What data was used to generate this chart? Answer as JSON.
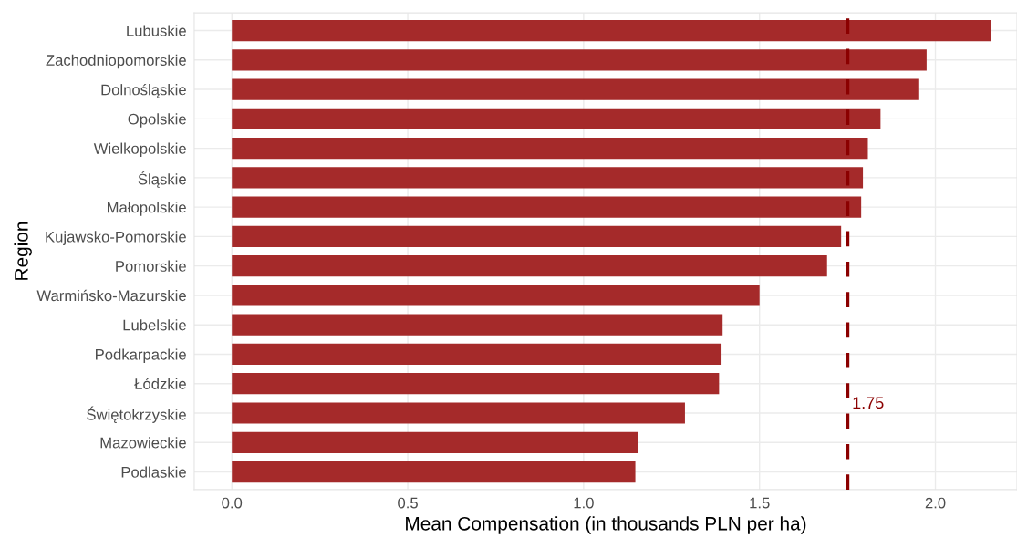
{
  "chart_data": {
    "type": "bar",
    "orientation": "horizontal",
    "xlabel": "Mean Compensation (in thousands PLN per ha)",
    "ylabel": "Region",
    "categories": [
      "Lubuskie",
      "Zachodniopomorskie",
      "Dolnośląskie",
      "Opolskie",
      "Wielkopolskie",
      "Śląskie",
      "Małopolskie",
      "Kujawsko-Pomorskie",
      "Pomorskie",
      "Warmińsko-Mazurskie",
      "Lubelskie",
      "Podkarpackie",
      "Łódzkie",
      "Świętokrzyskie",
      "Mazowieckie",
      "Podlaskie"
    ],
    "values": [
      2.157,
      1.975,
      1.954,
      1.844,
      1.808,
      1.794,
      1.789,
      1.732,
      1.692,
      1.5,
      1.395,
      1.392,
      1.385,
      1.288,
      1.154,
      1.147
    ],
    "color": "#a52a2a",
    "xlim": [
      -0.107,
      2.232
    ],
    "xticks": [
      {
        "value": 0,
        "label": "0.0"
      },
      0.5,
      {
        "value": 1,
        "label": "1.0"
      },
      1.5,
      {
        "value": 2,
        "label": "2.0"
      }
    ],
    "grid": true,
    "legend": false,
    "ref_lines": [
      {
        "axis": "x",
        "value": 1.75,
        "label": "1.75",
        "color": "#8b0000",
        "line_style": "dashed"
      }
    ]
  }
}
